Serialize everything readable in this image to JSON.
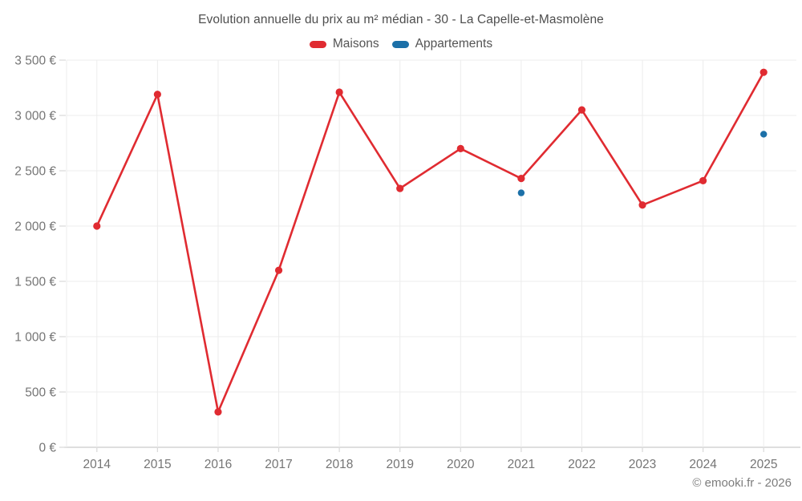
{
  "header": {
    "title": "Evolution annuelle du prix au m² médian - 30 - La Capelle-et-Masmolène"
  },
  "legend": {
    "items": [
      {
        "label": "Maisons",
        "color": "#e02b31"
      },
      {
        "label": "Appartements",
        "color": "#1c70a8"
      }
    ]
  },
  "footer": {
    "watermark": "© emooki.fr - 2026"
  },
  "chart_data": {
    "type": "line",
    "title": "Evolution annuelle du prix au m² médian - 30 - La Capelle-et-Masmolène",
    "categories": [
      "2014",
      "2015",
      "2016",
      "2017",
      "2018",
      "2019",
      "2020",
      "2021",
      "2022",
      "2023",
      "2024",
      "2025"
    ],
    "series": [
      {
        "name": "Maisons",
        "color": "#e02b31",
        "style": "line+markers",
        "values": [
          2000,
          3190,
          320,
          1600,
          3210,
          2340,
          2700,
          2430,
          3050,
          2190,
          2410,
          3390
        ]
      },
      {
        "name": "Appartements",
        "color": "#1c70a8",
        "style": "markers",
        "values": [
          null,
          null,
          null,
          null,
          null,
          null,
          null,
          2300,
          null,
          null,
          null,
          2830
        ]
      }
    ],
    "xlabel": "",
    "ylabel": "",
    "ylim": [
      0,
      3500
    ],
    "y_ticks": [
      0,
      500,
      1000,
      1500,
      2000,
      2500,
      3000,
      3500
    ],
    "y_tick_suffix": " €",
    "grid": true,
    "legend_position": "top",
    "colors": {
      "grid": "#ececec",
      "axis": "#c9c9c9",
      "tick": "#d9d9d9",
      "tick_label": "#757575"
    }
  }
}
